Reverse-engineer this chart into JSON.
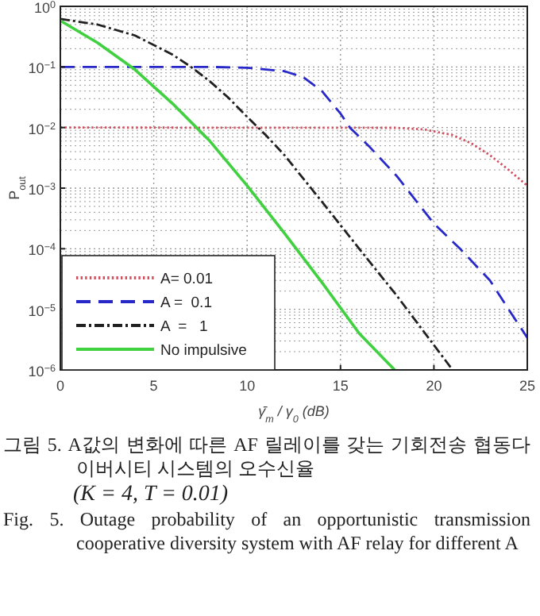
{
  "chart_data": {
    "type": "line",
    "xlabel": "γ̄$_{m}$ / γ$_{0}$ (dB)",
    "ylabel": "P$_{out}$",
    "log": "y",
    "grid": true,
    "legend": "bottom left",
    "xlim": [
      0,
      25
    ],
    "xticks": [
      0,
      5,
      10,
      15,
      20,
      25
    ],
    "ylim": [
      1e-06,
      1
    ],
    "yticks": [
      {
        "value": 1e-06,
        "label": "10$^{−6}$"
      },
      {
        "value": 1e-05,
        "label": "10$^{−5}$"
      },
      {
        "value": 0.0001,
        "label": "10$^{−4}$"
      },
      {
        "value": 0.001,
        "label": "10$^{−3}$"
      },
      {
        "value": 0.01,
        "label": "10$^{−2}$"
      },
      {
        "value": 0.1,
        "label": "10$^{−1}$"
      },
      {
        "value": 1,
        "label": "10$^{0}$"
      }
    ],
    "series": [
      {
        "name": "A= 0.01",
        "color": "#d05060",
        "line_style": "dotted",
        "x": [
          0,
          18,
          19.5,
          21,
          22,
          23,
          24,
          25
        ],
        "values": [
          0.01,
          0.0099,
          0.0093,
          0.0075,
          0.0055,
          0.0035,
          0.002,
          0.0011
        ]
      },
      {
        "name": "A =  0.1",
        "color": "#2828c8",
        "line_style": "dashed",
        "x": [
          0,
          8,
          10,
          12,
          13,
          14,
          15,
          15.5,
          16.5,
          18,
          20,
          21.4,
          23,
          24,
          25
        ],
        "values": [
          0.1,
          0.1,
          0.097,
          0.085,
          0.068,
          0.04,
          0.017,
          0.01,
          0.005,
          0.0016,
          0.00026,
          0.0001,
          3e-05,
          1e-05,
          3.4e-06
        ]
      },
      {
        "name": "A  =   1",
        "color": "#202020",
        "line_style": "dashdot",
        "x": [
          0,
          2,
          4,
          6,
          7,
          8,
          9,
          10,
          11,
          12,
          14,
          16,
          18,
          21
        ],
        "values": [
          0.62,
          0.5,
          0.33,
          0.16,
          0.1,
          0.058,
          0.031,
          0.015,
          0.0075,
          0.0035,
          0.0006,
          0.0001,
          1.7e-05,
          1e-06
        ]
      },
      {
        "name": "No impulsive",
        "color": "#40d040",
        "line_style": "solid",
        "x": [
          0,
          2,
          4,
          6,
          8,
          10,
          12,
          14,
          16,
          17.9
        ],
        "values": [
          0.58,
          0.25,
          0.09,
          0.025,
          0.006,
          0.0011,
          0.00018,
          2.8e-05,
          4e-06,
          1e-06
        ]
      }
    ],
    "annotations": [
      "그림 5. A값의 변화에 따른 AF 릴레이를 갖는 기회전송 협동다이버시티 시스템의 오수신율",
      "(K = 4, T = 0.01)",
      "Fig. 5. Outage probability of an opportunistic transmission cooperative diversity system with AF relay for different A"
    ]
  }
}
